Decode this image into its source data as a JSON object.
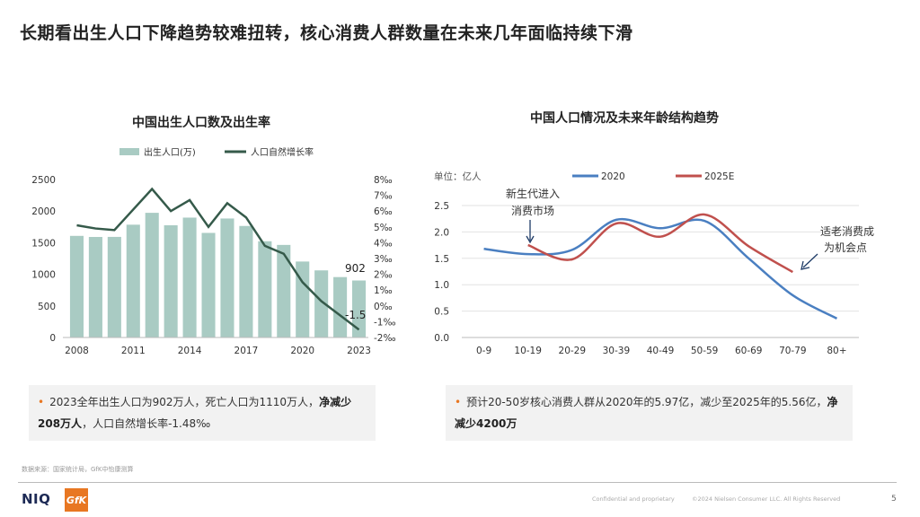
{
  "page": {
    "title": "长期看出生人口下降趋势较难扭转，核心消费人群数量在未来几年面临持续下滑",
    "source": "数据来源：国家统计局，GfK中怡康测算",
    "confidential": "Confidential and proprietary",
    "copyright": "©2024 Nielsen Consumer LLC. All Rights Reserved",
    "page_number": "5",
    "logo_niq": "NIQ",
    "logo_gfk": "GfK"
  },
  "colors": {
    "bar": "#a9cbc3",
    "line_dark": "#355a4a",
    "blue": "#4a7fc1",
    "red": "#c0504d",
    "bullet": "#e87722"
  },
  "notes": {
    "left": {
      "bullet": "•",
      "text1": "2023全年出生人口为902万人，死亡人口为1110万人，",
      "bold1": "净减少208万人",
      "text2": "，人口自然增长率-1.48‰"
    },
    "right": {
      "bullet": "•",
      "text1": "预计20-50岁核心消费人群从2020年的5.97亿，减少至2025年的5.56亿，",
      "bold1": "净减少4200万"
    }
  },
  "chart_data": [
    {
      "type": "bar+line",
      "title": "中国出生人口数及出生率",
      "categories": [
        "2008",
        "2009",
        "2010",
        "2011",
        "2012",
        "2013",
        "2014",
        "2015",
        "2016",
        "2017",
        "2018",
        "2019",
        "2020",
        "2021",
        "2022",
        "2023"
      ],
      "x_tick_labels": [
        "2008",
        "2011",
        "2014",
        "2017",
        "2020",
        "2023"
      ],
      "series": [
        {
          "name": "出生人口(万)",
          "kind": "bar",
          "axis": "left",
          "values": [
            1608,
            1591,
            1592,
            1785,
            1973,
            1776,
            1897,
            1655,
            1883,
            1765,
            1523,
            1465,
            1202,
            1062,
            956,
            902
          ]
        },
        {
          "name": "人口自然增长率",
          "kind": "line",
          "axis": "right",
          "values": [
            5.1,
            4.9,
            4.8,
            6.1,
            7.4,
            6.0,
            6.7,
            5.0,
            6.5,
            5.6,
            3.8,
            3.3,
            1.5,
            0.3,
            -0.6,
            -1.5
          ]
        }
      ],
      "left_axis": {
        "min": 0,
        "max": 2500,
        "ticks": [
          "0",
          "500",
          "1000",
          "1500",
          "2000",
          "2500"
        ]
      },
      "right_axis": {
        "min": -2,
        "max": 8,
        "ticks": [
          "-2‰",
          "-1‰",
          "0‰",
          "1‰",
          "2‰",
          "3‰",
          "4‰",
          "5‰",
          "6‰",
          "7‰",
          "8‰"
        ]
      },
      "annotations": {
        "last_bar": "902",
        "last_rate": "-1.5"
      },
      "legend": "top"
    },
    {
      "type": "line",
      "title": "中国人口情况及未来年龄结构趋势",
      "unit_label": "单位：亿人",
      "categories": [
        "0-9",
        "10-19",
        "20-29",
        "30-39",
        "40-49",
        "50-59",
        "60-69",
        "70-79",
        "80+"
      ],
      "series": [
        {
          "name": "2020",
          "values": [
            1.68,
            1.58,
            1.66,
            2.23,
            2.07,
            2.21,
            1.5,
            0.8,
            0.36
          ]
        },
        {
          "name": "2025E",
          "values": [
            null,
            1.75,
            1.48,
            2.16,
            1.91,
            2.33,
            1.73,
            1.24,
            null
          ]
        }
      ],
      "y_axis": {
        "min": 0,
        "max": 2.5,
        "ticks": [
          "0.0",
          "0.5",
          "1.0",
          "1.5",
          "2.0",
          "2.5"
        ]
      },
      "annotations": {
        "left_a": "新生代进入",
        "left_b": "消费市场",
        "right_a": "适老消费成",
        "right_b": "为机会点"
      },
      "legend": "top"
    }
  ]
}
